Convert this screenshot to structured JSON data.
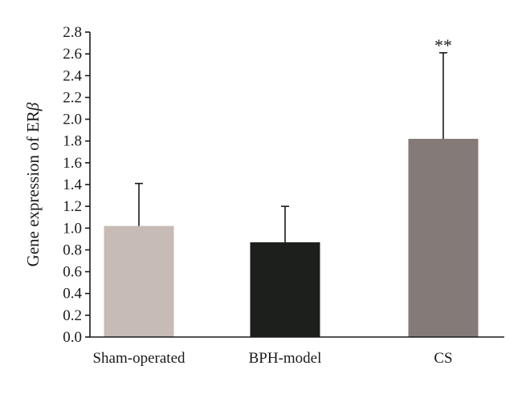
{
  "chart_data": {
    "type": "bar",
    "categories": [
      "Sham-operated",
      "BPH-model",
      "CS"
    ],
    "values": [
      1.02,
      0.87,
      1.82
    ],
    "error_plus": [
      0.39,
      0.33,
      0.79
    ],
    "annotations": [
      "",
      "",
      "**"
    ],
    "colors": [
      "#c7bbb5",
      "#1c1f1c",
      "#847a77"
    ],
    "ylabel": "Gene expression of ER",
    "ylabel_symbol": "β",
    "ylim": [
      0,
      2.8
    ],
    "yticks": [
      "0.0",
      "0.2",
      "0.4",
      "0.6",
      "0.8",
      "1.0",
      "1.2",
      "1.4",
      "1.6",
      "1.8",
      "2.0",
      "2.2",
      "2.4",
      "2.6",
      "2.8"
    ],
    "grid": false,
    "legend": "none"
  }
}
